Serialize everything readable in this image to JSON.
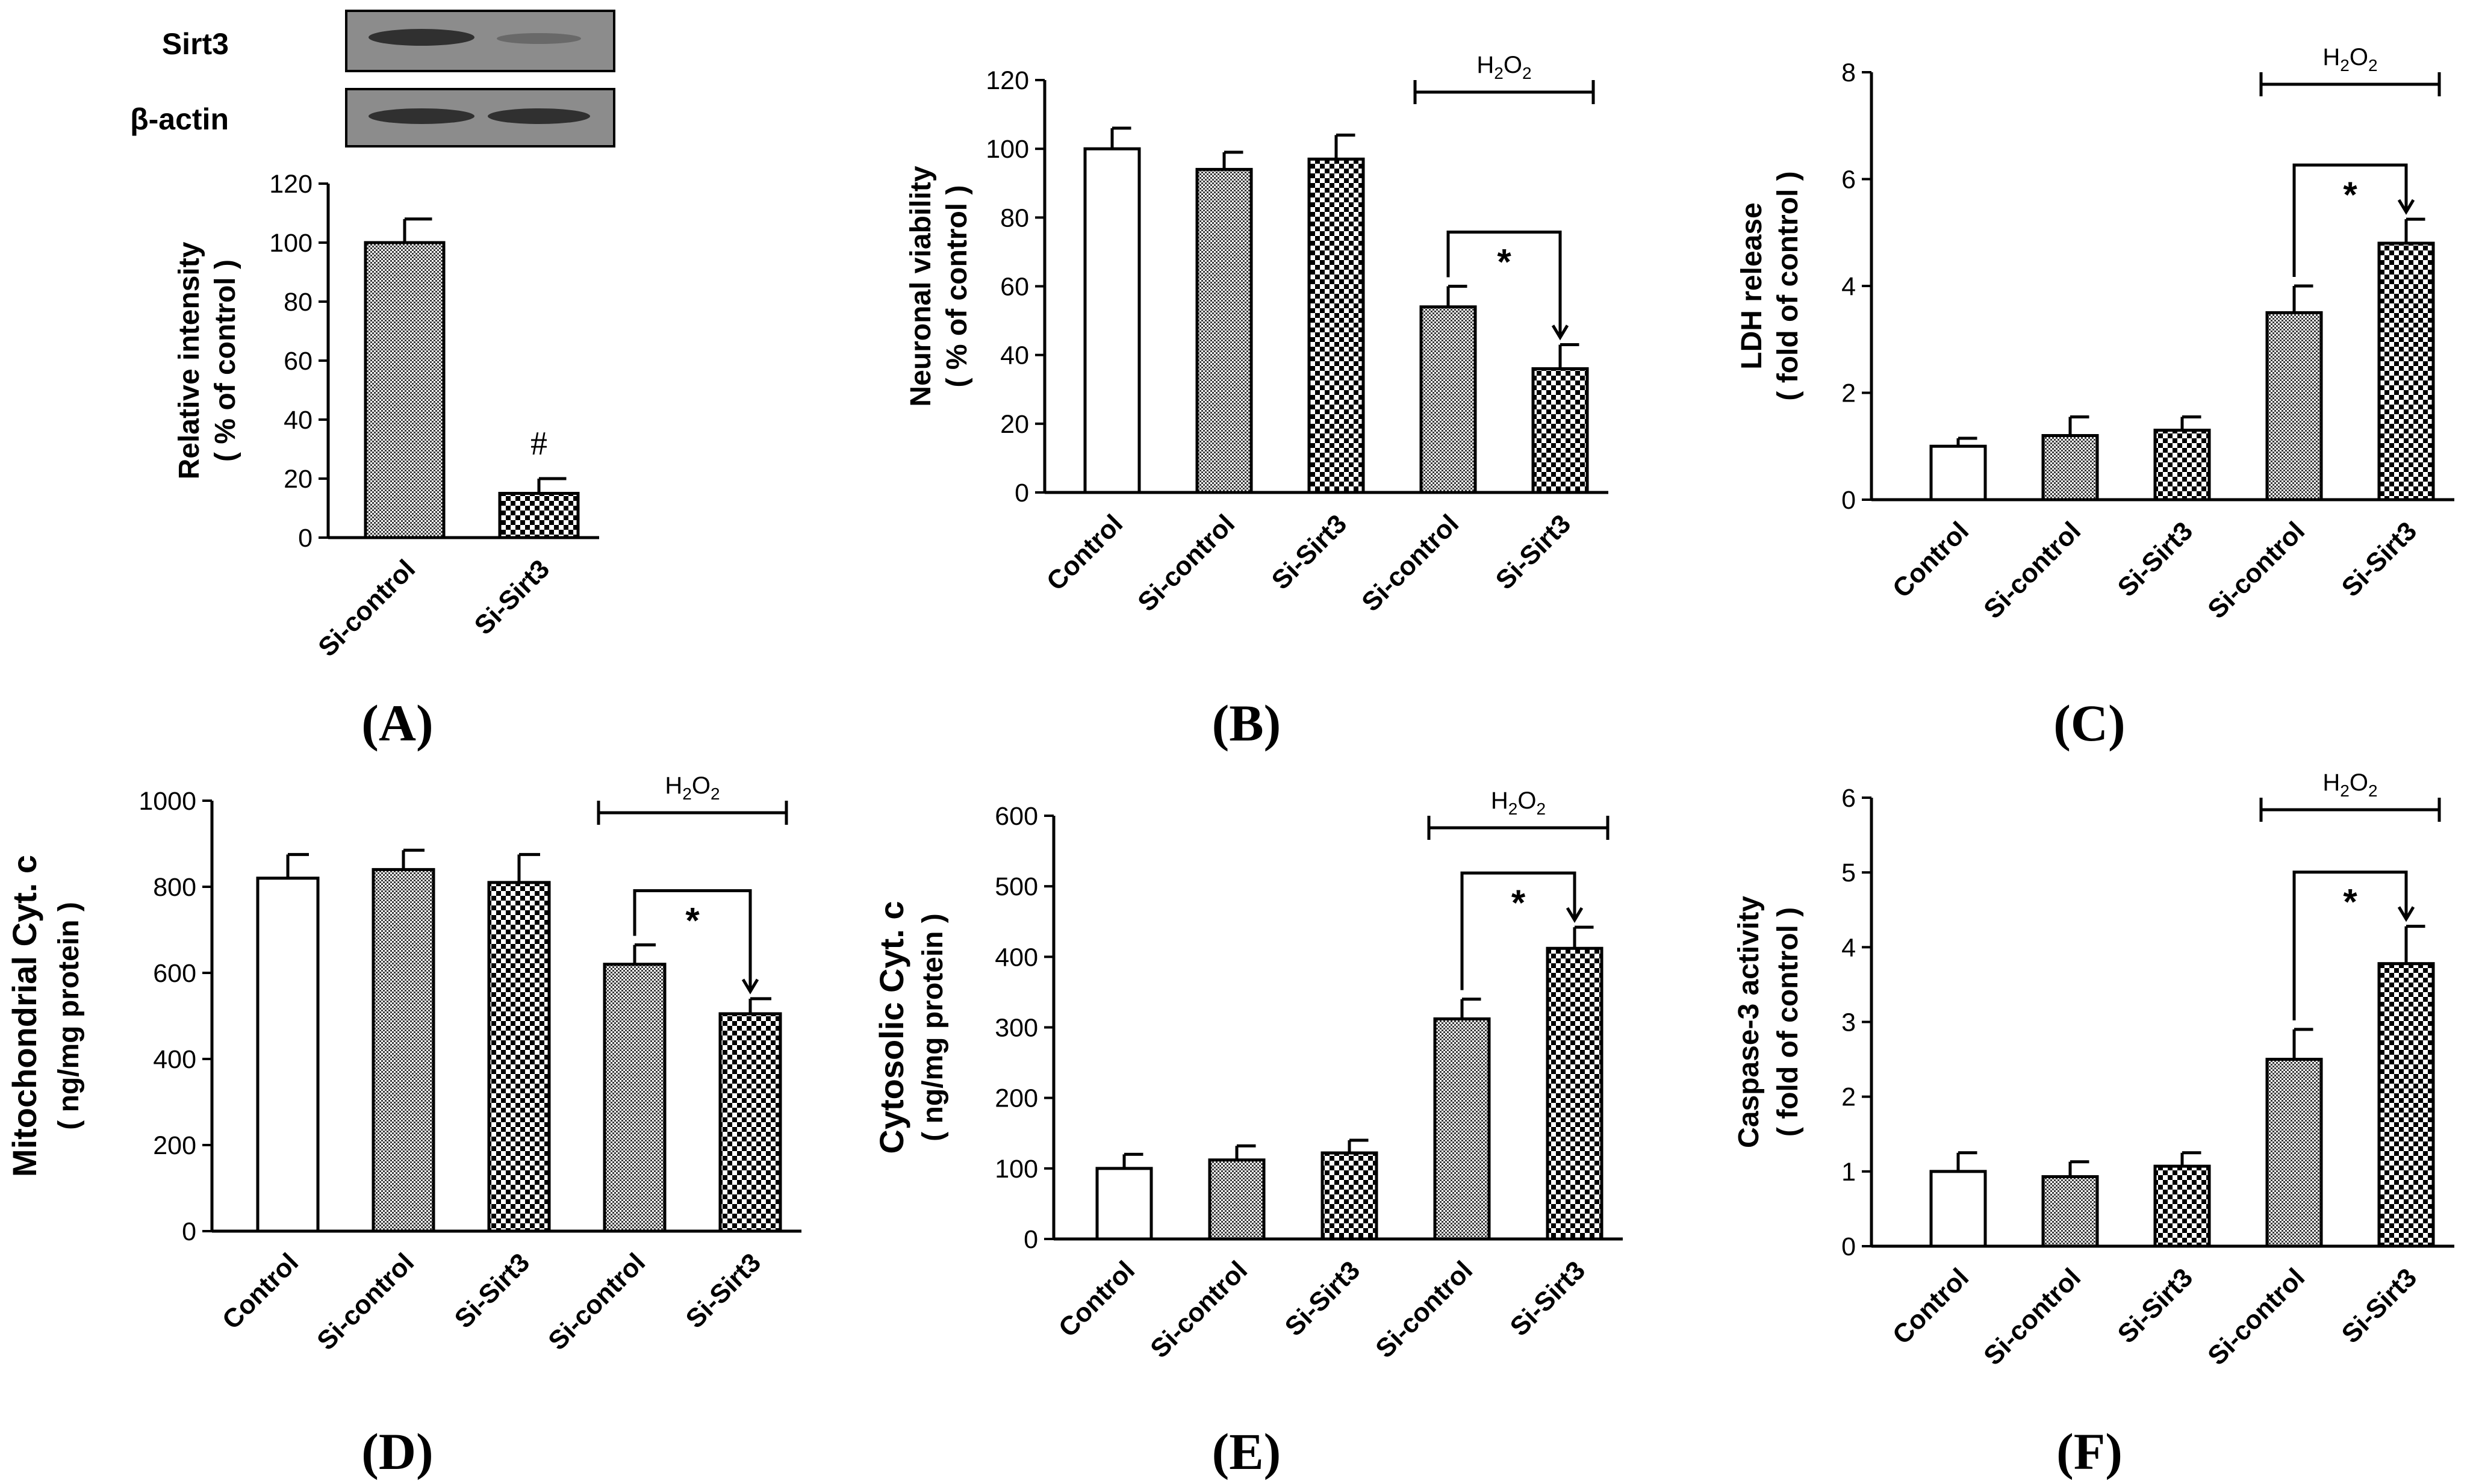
{
  "colors": {
    "ink": "#000000",
    "background": "#ffffff",
    "blot_bg": "#8c8c8c",
    "blot_band": "#2a2a2a"
  },
  "panel_labels": [
    "(A)",
    "(B)",
    "(C)",
    "(D)",
    "(E)",
    "(F)"
  ],
  "western_blot": {
    "rows": [
      "Sirt3",
      "β-actin"
    ]
  },
  "chart_data": [
    {
      "panel": "A",
      "type": "bar",
      "categories": [
        "Si-control",
        "Si-Sirt3"
      ],
      "patterns": [
        "fine",
        "check"
      ],
      "values": [
        100,
        15
      ],
      "errors": [
        8,
        5
      ],
      "ylabel_lines": [
        "Relative intensity",
        "( % of control )"
      ],
      "ylim": [
        0,
        120
      ],
      "ticks": [
        "0",
        "20",
        "40",
        "60",
        "80",
        "100",
        "120"
      ],
      "annotation": "#"
    },
    {
      "panel": "B",
      "type": "bar",
      "categories": [
        "Control",
        "Si-control",
        "Si-Sirt3",
        "Si-control",
        "Si-Sirt3"
      ],
      "patterns": [
        "white",
        "fine",
        "check",
        "fine",
        "check"
      ],
      "values": [
        100,
        94,
        97,
        54,
        36
      ],
      "errors": [
        6,
        5,
        7,
        6,
        7
      ],
      "ylabel_lines": [
        "Neuronal viability",
        "( % of control )"
      ],
      "ylim": [
        0,
        120
      ],
      "ticks": [
        "0",
        "20",
        "40",
        "60",
        "80",
        "100",
        "120"
      ],
      "treatment": "H2O2",
      "treatment_main": "H",
      "treatment_sub": "2",
      "treatment_tail": "O",
      "treatment_sub2": "2",
      "significance": "*"
    },
    {
      "panel": "C",
      "type": "bar",
      "categories": [
        "Control",
        "Si-control",
        "Si-Sirt3",
        "Si-control",
        "Si-Sirt3"
      ],
      "patterns": [
        "white",
        "fine",
        "check",
        "fine",
        "check"
      ],
      "values": [
        1.0,
        1.2,
        1.3,
        3.5,
        4.8
      ],
      "errors": [
        0.15,
        0.35,
        0.25,
        0.5,
        0.45
      ],
      "ylabel_lines": [
        "LDH release",
        "( fold of control )"
      ],
      "ylim": [
        0,
        8
      ],
      "ticks": [
        "0",
        "2",
        "4",
        "6",
        "8"
      ],
      "treatment": "H2O2",
      "treatment_main": "H",
      "treatment_sub": "2",
      "treatment_tail": "O",
      "treatment_sub2": "2",
      "significance": "*"
    },
    {
      "panel": "D",
      "type": "bar",
      "categories": [
        "Control",
        "Si-control",
        "Si-Sirt3",
        "Si-control",
        "Si-Sirt3"
      ],
      "patterns": [
        "white",
        "fine",
        "check",
        "fine",
        "check"
      ],
      "values": [
        820,
        840,
        810,
        620,
        505
      ],
      "errors": [
        55,
        45,
        65,
        45,
        35
      ],
      "ylabel_lines": [
        "Mitochondrial Cyt. c",
        "( ng/mg protein )"
      ],
      "ylim": [
        0,
        1000
      ],
      "ticks": [
        "0",
        "200",
        "400",
        "600",
        "800",
        "1000"
      ],
      "treatment": "H2O2",
      "treatment_main": "H",
      "treatment_sub": "2",
      "treatment_tail": "O",
      "treatment_sub2": "2",
      "significance": "*"
    },
    {
      "panel": "E",
      "type": "bar",
      "categories": [
        "Control",
        "Si-control",
        "Si-Sirt3",
        "Si-control",
        "Si-Sirt3"
      ],
      "patterns": [
        "white",
        "fine",
        "check",
        "fine",
        "check"
      ],
      "values": [
        100,
        112,
        122,
        312,
        412
      ],
      "errors": [
        20,
        20,
        18,
        28,
        30
      ],
      "ylabel_lines": [
        "Cytosolic Cyt. c",
        "( ng/mg protein )"
      ],
      "ylim": [
        0,
        600
      ],
      "ticks": [
        "0",
        "100",
        "200",
        "300",
        "400",
        "500",
        "600"
      ],
      "treatment": "H2O2",
      "treatment_main": "H",
      "treatment_sub": "2",
      "treatment_tail": "O",
      "treatment_sub2": "2",
      "significance": "*"
    },
    {
      "panel": "F",
      "type": "bar",
      "categories": [
        "Control",
        "Si-control",
        "Si-Sirt3",
        "Si-control",
        "Si-Sirt3"
      ],
      "patterns": [
        "white",
        "fine",
        "check",
        "fine",
        "check"
      ],
      "values": [
        1.0,
        0.93,
        1.07,
        2.5,
        3.78
      ],
      "errors": [
        0.25,
        0.2,
        0.18,
        0.4,
        0.5
      ],
      "ylabel_lines": [
        "Caspase-3 activity",
        "( fold of control )"
      ],
      "ylim": [
        0,
        6
      ],
      "ticks": [
        "0",
        "1",
        "2",
        "3",
        "4",
        "5",
        "6"
      ],
      "treatment": "H2O2",
      "treatment_main": "H",
      "treatment_sub": "2",
      "treatment_tail": "O",
      "treatment_sub2": "2",
      "significance": "*"
    }
  ]
}
